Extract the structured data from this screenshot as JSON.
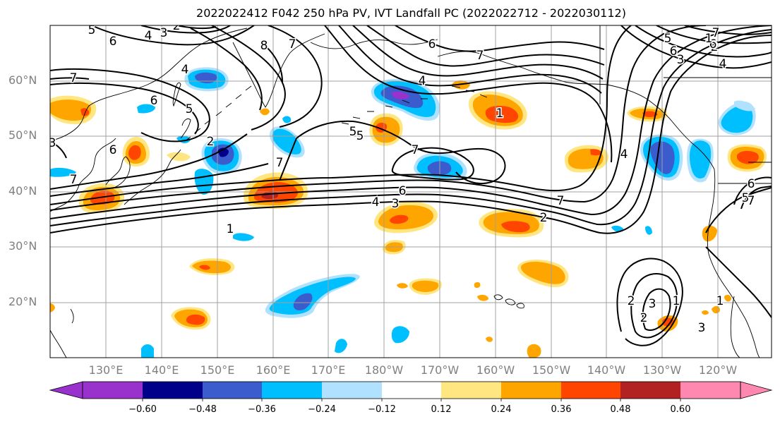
{
  "title": "2022022412 F042 250 hPa PV, IVT Landfall PC (2022022712 - 2022030112)",
  "lat_labels": [
    "60°N",
    "50°N",
    "40°N",
    "30°N",
    "20°N"
  ],
  "lon_labels": [
    "130°E",
    "140°E",
    "150°E",
    "160°E",
    "170°E",
    "180°W",
    "170°W",
    "160°W",
    "150°W",
    "140°W",
    "130°W",
    "120°W"
  ],
  "colorbar": {
    "ticks": [
      "−0.60",
      "−0.48",
      "−0.36",
      "−0.24",
      "−0.12",
      "0.12",
      "0.24",
      "0.36",
      "0.48",
      "0.60"
    ],
    "colors": [
      "#9932cc",
      "#00008b",
      "#3a5ccc",
      "#00bfff",
      "#b0e2ff",
      "#ffffff",
      "#ffe680",
      "#ffa500",
      "#ff4500",
      "#b22222",
      "#ff88b0"
    ]
  },
  "contour_labels": [
    "5",
    "4",
    "3",
    "2",
    "6",
    "8",
    "7",
    "1",
    "7",
    "6",
    "5",
    "4",
    "3",
    "2",
    "6",
    "7",
    "7",
    "5",
    "7",
    "6",
    "4",
    "3",
    "2",
    "1",
    "7",
    "4",
    "5",
    "6",
    "7",
    "2",
    "1",
    "2",
    "3",
    "3",
    "1",
    "5",
    "6",
    "3",
    "2",
    "4",
    "6",
    "7",
    "6",
    "4",
    "7",
    "7",
    "5",
    "1"
  ]
}
